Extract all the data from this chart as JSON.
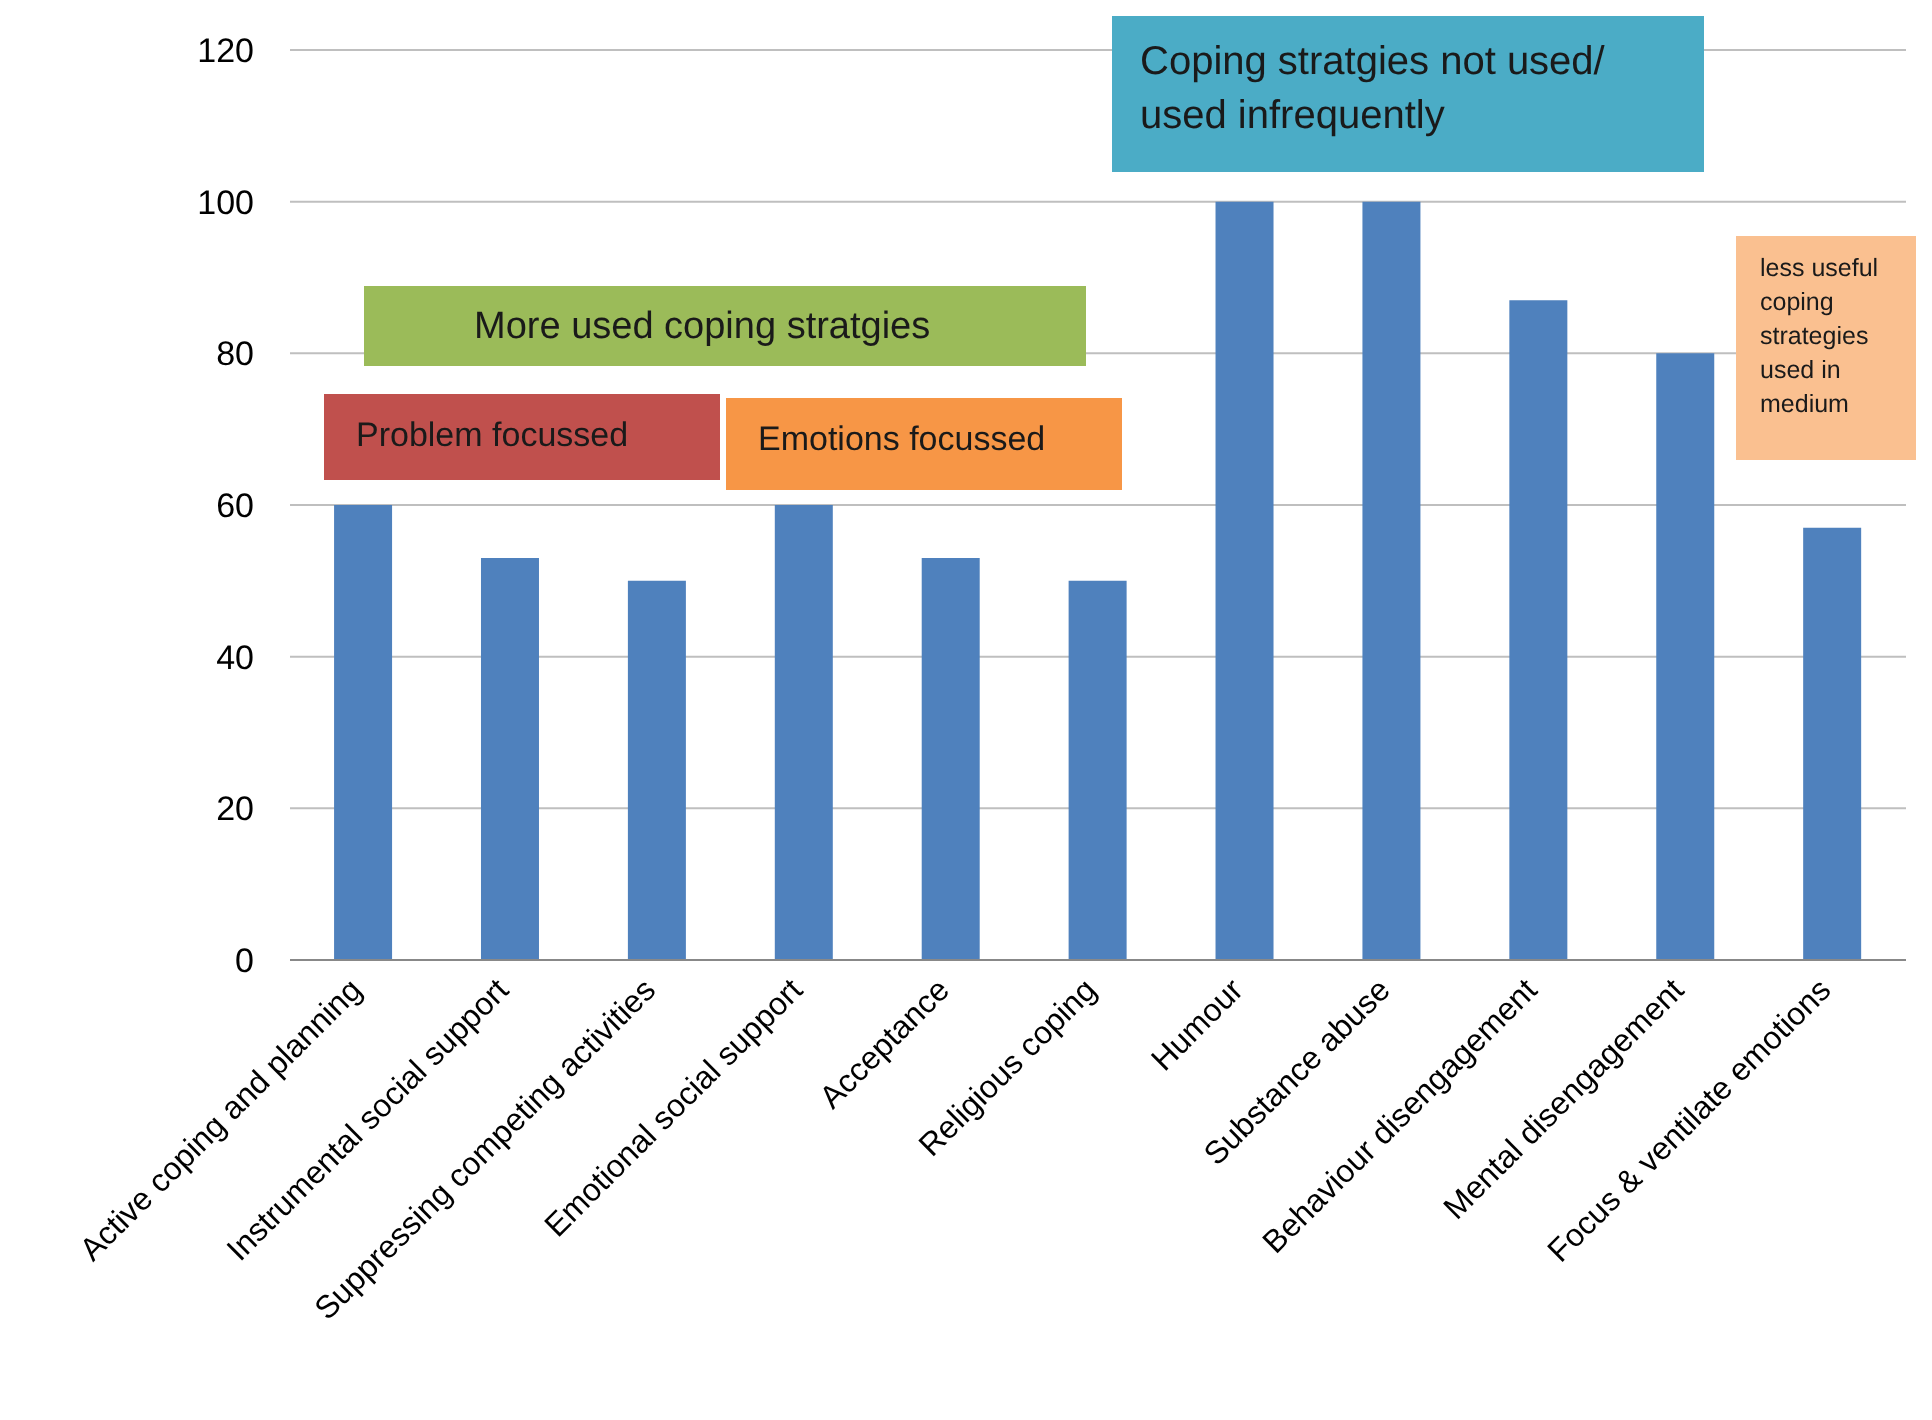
{
  "chart_data": {
    "type": "bar",
    "categories": [
      "Active coping and planning",
      "Instrumental social support",
      "Suppressing competing activities",
      "Emotional social support",
      "Acceptance",
      "Religious coping",
      "Humour",
      "Substance abuse",
      "Behaviour disengagement",
      "Mental disengagement",
      "Focus & ventilate emotions"
    ],
    "values": [
      60,
      53,
      50,
      60,
      53,
      50,
      100,
      100,
      87,
      80,
      57
    ],
    "color": "#4f81bd",
    "ylim": [
      0,
      120
    ],
    "yticks": [
      0,
      20,
      40,
      60,
      80,
      100,
      120
    ],
    "grid": "y",
    "legend": false,
    "annotations": [
      "Coping stratgies not used/ used infrequently",
      "More used  coping stratgies",
      "Problem focussed",
      "Emotions focussed",
      "less useful coping strategies used in medium"
    ]
  }
}
